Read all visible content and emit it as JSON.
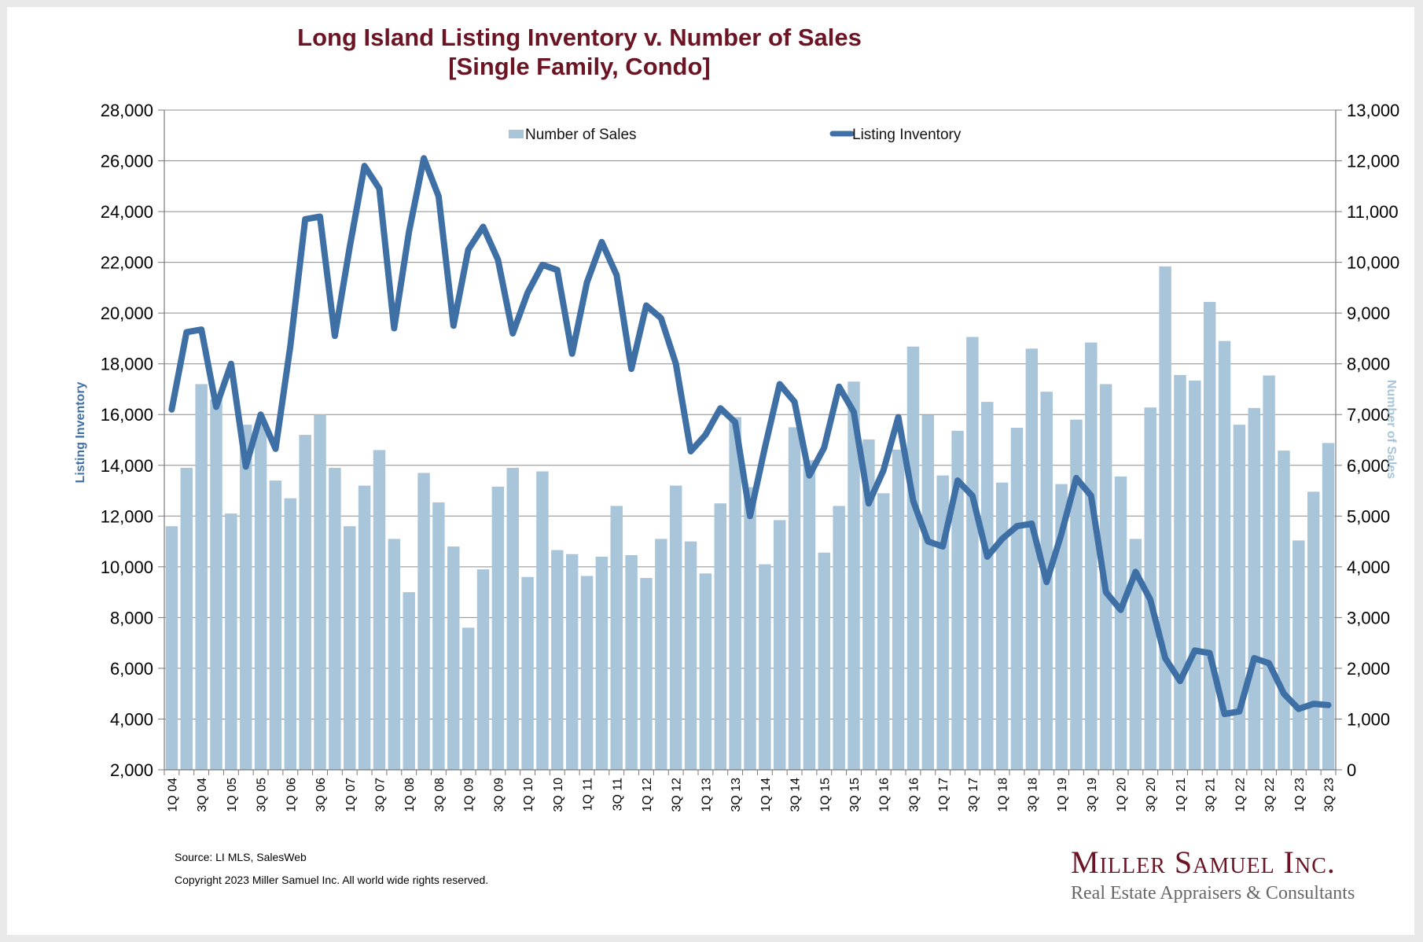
{
  "chart_data": {
    "type": "bar+line",
    "title_line1": "Long Island Listing Inventory v. Number of Sales",
    "title_line2": "[Single Family, Condo]",
    "y_left_label": "Listing Inventory",
    "y_right_label": "Number of Sales",
    "y_left_range": [
      2000,
      28000
    ],
    "y_right_range": [
      0,
      13000
    ],
    "y_left_ticks": [
      "2,000",
      "4,000",
      "6,000",
      "8,000",
      "10,000",
      "12,000",
      "14,000",
      "16,000",
      "18,000",
      "20,000",
      "22,000",
      "24,000",
      "26,000",
      "28,000"
    ],
    "y_right_ticks": [
      "0",
      "1,000",
      "2,000",
      "3,000",
      "4,000",
      "5,000",
      "6,000",
      "7,000",
      "8,000",
      "9,000",
      "10,000",
      "11,000",
      "12,000",
      "13,000"
    ],
    "grid": true,
    "legend_position": "top-center",
    "categories": [
      "1Q 04",
      "2Q 04",
      "3Q 04",
      "4Q 04",
      "1Q 05",
      "2Q 05",
      "3Q 05",
      "4Q 05",
      "1Q 06",
      "2Q 06",
      "3Q 06",
      "4Q 06",
      "1Q 07",
      "2Q 07",
      "3Q 07",
      "4Q 07",
      "1Q 08",
      "2Q 08",
      "3Q 08",
      "4Q 08",
      "1Q 09",
      "2Q 09",
      "3Q 09",
      "4Q 09",
      "1Q 10",
      "2Q 10",
      "3Q 10",
      "4Q 10",
      "1Q 11",
      "2Q 11",
      "3Q 11",
      "4Q 11",
      "1Q 12",
      "2Q 12",
      "3Q 12",
      "4Q 12",
      "1Q 13",
      "2Q 13",
      "3Q 13",
      "4Q 13",
      "1Q 14",
      "2Q 14",
      "3Q 14",
      "4Q 14",
      "1Q 15",
      "2Q 15",
      "3Q 15",
      "4Q 15",
      "1Q 16",
      "2Q 16",
      "3Q 16",
      "4Q 16",
      "1Q 17",
      "2Q 17",
      "3Q 17",
      "4Q 17",
      "1Q 18",
      "2Q 18",
      "3Q 18",
      "4Q 18",
      "1Q 19",
      "2Q 19",
      "3Q 19",
      "4Q 19",
      "1Q 20",
      "2Q 20",
      "3Q 20",
      "4Q 20",
      "1Q 21",
      "2Q 21",
      "3Q 21",
      "4Q 21",
      "1Q 22",
      "2Q 22",
      "3Q 22",
      "4Q 22",
      "1Q 23",
      "2Q 23",
      "3Q 23"
    ],
    "x_tick_labels": [
      "1Q 04",
      "3Q 04",
      "1Q 05",
      "3Q 05",
      "1Q 06",
      "3Q 06",
      "1Q 07",
      "3Q 07",
      "1Q 08",
      "3Q 08",
      "1Q 09",
      "3Q 09",
      "1Q 10",
      "3Q 10",
      "1Q 11",
      "3Q 11",
      "1Q 12",
      "3Q 12",
      "1Q 13",
      "3Q 13",
      "1Q 14",
      "3Q 14",
      "1Q 15",
      "3Q 15",
      "1Q 16",
      "3Q 16",
      "1Q 17",
      "3Q 17",
      "1Q 18",
      "3Q 18",
      "1Q 19",
      "3Q 19",
      "1Q 20",
      "3Q 20",
      "1Q 21",
      "3Q 21",
      "1Q 22",
      "3Q 22",
      "1Q 23",
      "3Q 23"
    ],
    "series": [
      {
        "name": "Number of Sales",
        "kind": "bar",
        "axis": "right",
        "color": "#a9c5da",
        "values": [
          4800,
          5950,
          7600,
          7300,
          5050,
          6800,
          6800,
          5700,
          5350,
          6600,
          7000,
          5950,
          4800,
          5600,
          6300,
          4550,
          3500,
          5850,
          5270,
          4400,
          2800,
          3950,
          5580,
          5950,
          3800,
          5880,
          4330,
          4250,
          3820,
          4200,
          5200,
          4230,
          3780,
          4550,
          5600,
          4500,
          3870,
          5250,
          6950,
          5570,
          4050,
          4920,
          6750,
          6100,
          4280,
          5200,
          7650,
          6510,
          5450,
          6310,
          8340,
          6990,
          5800,
          6680,
          8530,
          7250,
          5660,
          6740,
          8300,
          7450,
          5630,
          6900,
          8420,
          7600,
          5780,
          4550,
          7140,
          9920,
          7780,
          7670,
          9220,
          8450,
          6800,
          7130,
          7770,
          6290,
          4520,
          5480,
          6440
        ]
      },
      {
        "name": "Listing Inventory",
        "kind": "line",
        "axis": "left",
        "color": "#3e6fa5",
        "values": [
          16200,
          19250,
          19350,
          16300,
          18000,
          13950,
          16000,
          14650,
          18700,
          23700,
          23800,
          19100,
          22600,
          25800,
          24900,
          19400,
          23200,
          26100,
          24600,
          19500,
          22500,
          23400,
          22100,
          19200,
          20800,
          21900,
          21700,
          18400,
          21200,
          22800,
          21500,
          17800,
          20300,
          19800,
          18000,
          14550,
          15200,
          16250,
          15700,
          12000,
          14700,
          17200,
          16500,
          13600,
          14700,
          17100,
          16100,
          12500,
          13800,
          15900,
          12600,
          11000,
          10800,
          13400,
          12800,
          10400,
          11100,
          11600,
          11700,
          9400,
          11300,
          13500,
          12800,
          9000,
          8300,
          9800,
          8700,
          6400,
          5500,
          6700,
          6600,
          4200,
          4300,
          6400,
          6200,
          5000,
          4400,
          4600,
          4550
        ]
      }
    ],
    "source": "Source: LI MLS, SalesWeb",
    "copyright": "Copyright 2023 Miller Samuel Inc.  All world wide rights reserved.",
    "brand": {
      "name": "Miller Samuel Inc.",
      "tagline": "Real Estate Appraisers & Consultants"
    }
  }
}
